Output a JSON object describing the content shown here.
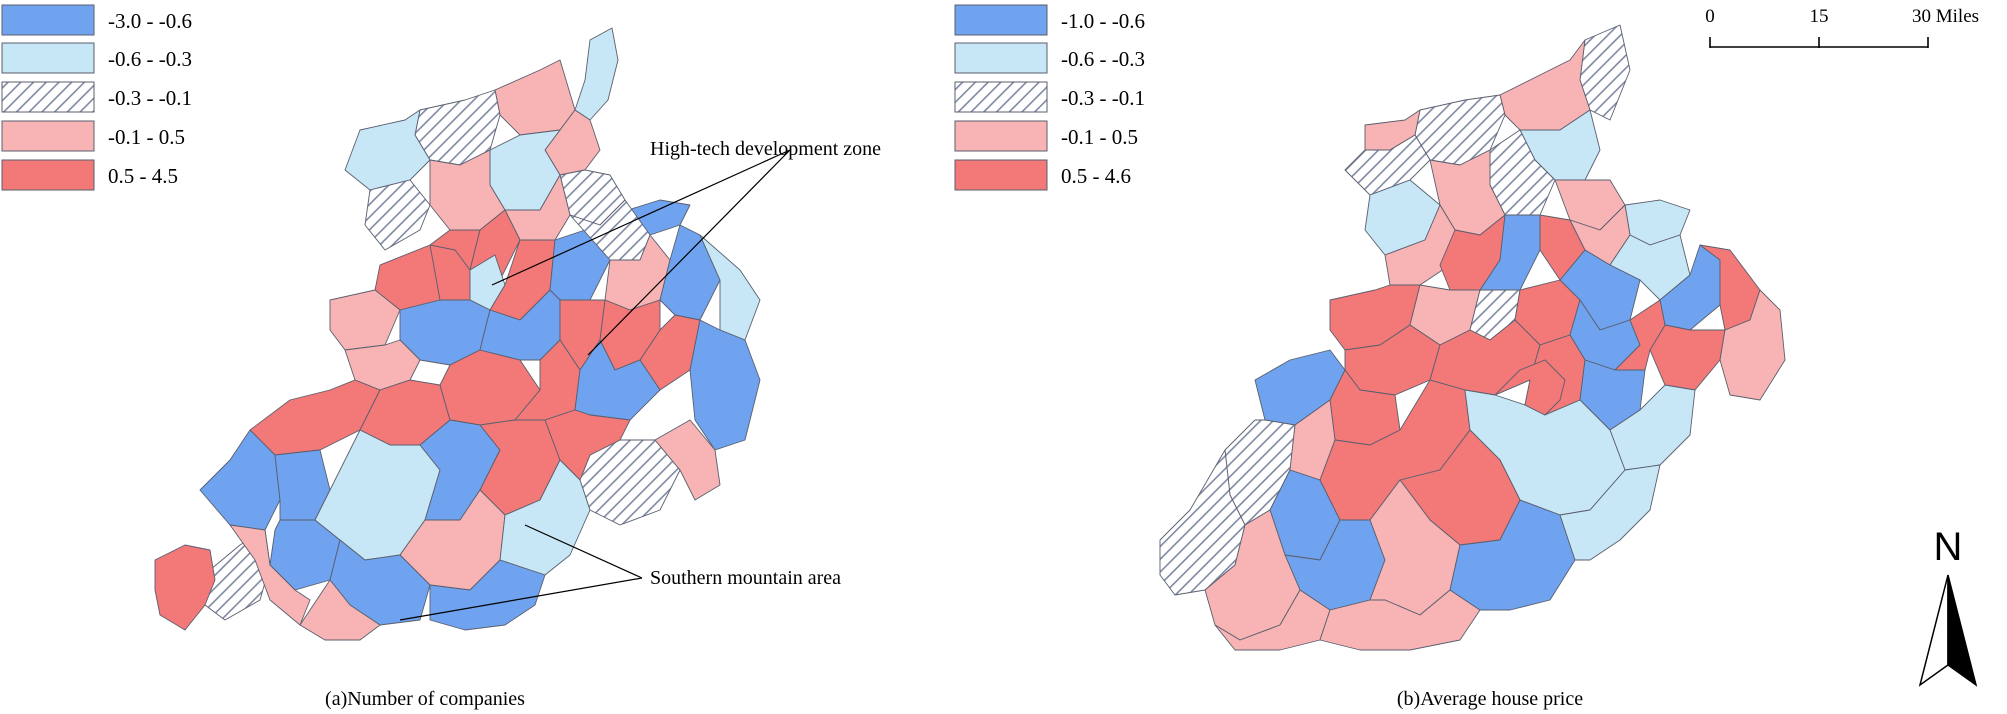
{
  "colors": {
    "class1": "#6fa3ef",
    "class2": "#c7e6f6",
    "class3_hatch_bg": "#ffffff",
    "class3_hatch_line": "#7f89a3",
    "class4": "#f8b4b4",
    "class5": "#f37878",
    "boundary": "#5a5f6e"
  },
  "legend_a": {
    "items": [
      {
        "label": "-3.0 - -0.6",
        "class": 1
      },
      {
        "label": "-0.6 - -0.3",
        "class": 2
      },
      {
        "label": "-0.3 - -0.1",
        "class": 3
      },
      {
        "label": "-0.1 - 0.5",
        "class": 4
      },
      {
        "label": "0.5 - 4.5",
        "class": 5
      }
    ]
  },
  "legend_b": {
    "items": [
      {
        "label": "-1.0 - -0.6",
        "class": 1
      },
      {
        "label": "-0.6 - -0.3",
        "class": 2
      },
      {
        "label": "-0.3 - -0.1",
        "class": 3
      },
      {
        "label": "-0.1 - 0.5",
        "class": 4
      },
      {
        "label": "0.5 - 4.6",
        "class": 5
      }
    ]
  },
  "annotations": {
    "high_tech": "High-tech development zone",
    "southern_mountain": "Southern mountain area"
  },
  "captions": {
    "map_a": "(a)Number of companies",
    "map_b": "(b)Average house price"
  },
  "scale_bar": {
    "tick0": "0",
    "tick1": "15",
    "tick2": "30 Miles"
  },
  "north_arrow": {
    "label": "N"
  },
  "map_a": {
    "regions": [
      {
        "id": "a-r1",
        "class": 2
      },
      {
        "id": "a-r2",
        "class": 4
      },
      {
        "id": "a-r3",
        "class": 3
      },
      {
        "id": "a-r4",
        "class": 2
      },
      {
        "id": "a-r5",
        "class": 4
      },
      {
        "id": "a-r6",
        "class": 3
      },
      {
        "id": "a-r7",
        "class": 2
      },
      {
        "id": "a-r8",
        "class": 4
      },
      {
        "id": "a-r9",
        "class": 3
      },
      {
        "id": "a-r10",
        "class": 4
      },
      {
        "id": "a-r11",
        "class": 1
      },
      {
        "id": "a-r12",
        "class": 5
      },
      {
        "id": "a-r13",
        "class": 5
      },
      {
        "id": "a-r14",
        "class": 2
      },
      {
        "id": "a-r15",
        "class": 5
      },
      {
        "id": "a-r16",
        "class": 1
      },
      {
        "id": "a-r17",
        "class": 3
      },
      {
        "id": "a-r18",
        "class": 4
      },
      {
        "id": "a-r19",
        "class": 1
      },
      {
        "id": "a-r20",
        "class": 4
      },
      {
        "id": "a-r21",
        "class": 1
      },
      {
        "id": "a-r22",
        "class": 2
      },
      {
        "id": "a-r23",
        "class": 5
      },
      {
        "id": "a-r24",
        "class": 1
      },
      {
        "id": "a-r25",
        "class": 4
      },
      {
        "id": "a-r26",
        "class": 5
      },
      {
        "id": "a-r27",
        "class": 5
      },
      {
        "id": "a-r28",
        "class": 5
      },
      {
        "id": "a-r29",
        "class": 1
      },
      {
        "id": "a-r30",
        "class": 5
      },
      {
        "id": "a-r31",
        "class": 5
      },
      {
        "id": "a-r32",
        "class": 5
      },
      {
        "id": "a-r33",
        "class": 1
      },
      {
        "id": "a-r34",
        "class": 1
      },
      {
        "id": "a-r35",
        "class": 1
      },
      {
        "id": "a-r36",
        "class": 1
      },
      {
        "id": "a-r37",
        "class": 3
      },
      {
        "id": "a-r38",
        "class": 4
      },
      {
        "id": "a-r39",
        "class": 5
      },
      {
        "id": "a-r40",
        "class": 3
      },
      {
        "id": "a-r41",
        "class": 4
      },
      {
        "id": "a-r42",
        "class": 2
      },
      {
        "id": "a-r43",
        "class": 1
      },
      {
        "id": "a-r44",
        "class": 5
      },
      {
        "id": "a-r45",
        "class": 5
      },
      {
        "id": "a-r46",
        "class": 4
      },
      {
        "id": "a-r47",
        "class": 2
      },
      {
        "id": "a-r48",
        "class": 1
      },
      {
        "id": "a-r49",
        "class": 4
      },
      {
        "id": "a-r50",
        "class": 1
      }
    ]
  },
  "map_b": {
    "regions": [
      {
        "id": "b-r1",
        "class": 3
      },
      {
        "id": "b-r2",
        "class": 4
      },
      {
        "id": "b-r3",
        "class": 3
      },
      {
        "id": "b-r4",
        "class": 4
      },
      {
        "id": "b-r5",
        "class": 3
      },
      {
        "id": "b-r6",
        "class": 2
      },
      {
        "id": "b-r7",
        "class": 3
      },
      {
        "id": "b-r8",
        "class": 4
      },
      {
        "id": "b-r9",
        "class": 4
      },
      {
        "id": "b-r10",
        "class": 2
      },
      {
        "id": "b-r11",
        "class": 2
      },
      {
        "id": "b-r12",
        "class": 4
      },
      {
        "id": "b-r13",
        "class": 5
      },
      {
        "id": "b-r14",
        "class": 1
      },
      {
        "id": "b-r15",
        "class": 5
      },
      {
        "id": "b-r16",
        "class": 4
      },
      {
        "id": "b-r17",
        "class": 2
      },
      {
        "id": "b-r18",
        "class": 1
      },
      {
        "id": "b-r19",
        "class": 1
      },
      {
        "id": "b-r20",
        "class": 5
      },
      {
        "id": "b-r21",
        "class": 5
      },
      {
        "id": "b-r22",
        "class": 4
      },
      {
        "id": "b-r23",
        "class": 3
      },
      {
        "id": "b-r24",
        "class": 5
      },
      {
        "id": "b-r25",
        "class": 1
      },
      {
        "id": "b-r26",
        "class": 5
      },
      {
        "id": "b-r27",
        "class": 5
      },
      {
        "id": "b-r28",
        "class": 4
      },
      {
        "id": "b-r29",
        "class": 1
      },
      {
        "id": "b-r30",
        "class": 5
      },
      {
        "id": "b-r31",
        "class": 5
      },
      {
        "id": "b-r32",
        "class": 5
      },
      {
        "id": "b-r33",
        "class": 5
      },
      {
        "id": "b-r34",
        "class": 1
      },
      {
        "id": "b-r35",
        "class": 2
      },
      {
        "id": "b-r36",
        "class": 3
      },
      {
        "id": "b-r37",
        "class": 3
      },
      {
        "id": "b-r38",
        "class": 4
      },
      {
        "id": "b-r39",
        "class": 1
      },
      {
        "id": "b-r40",
        "class": 1
      },
      {
        "id": "b-r41",
        "class": 4
      },
      {
        "id": "b-r42",
        "class": 4
      },
      {
        "id": "b-r43",
        "class": 5
      },
      {
        "id": "b-r44",
        "class": 2
      },
      {
        "id": "b-r45",
        "class": 5
      },
      {
        "id": "b-r46",
        "class": 4
      },
      {
        "id": "b-r47",
        "class": 4
      },
      {
        "id": "b-r48",
        "class": 1
      },
      {
        "id": "b-r49",
        "class": 2
      },
      {
        "id": "b-r50",
        "class": 5
      }
    ]
  }
}
